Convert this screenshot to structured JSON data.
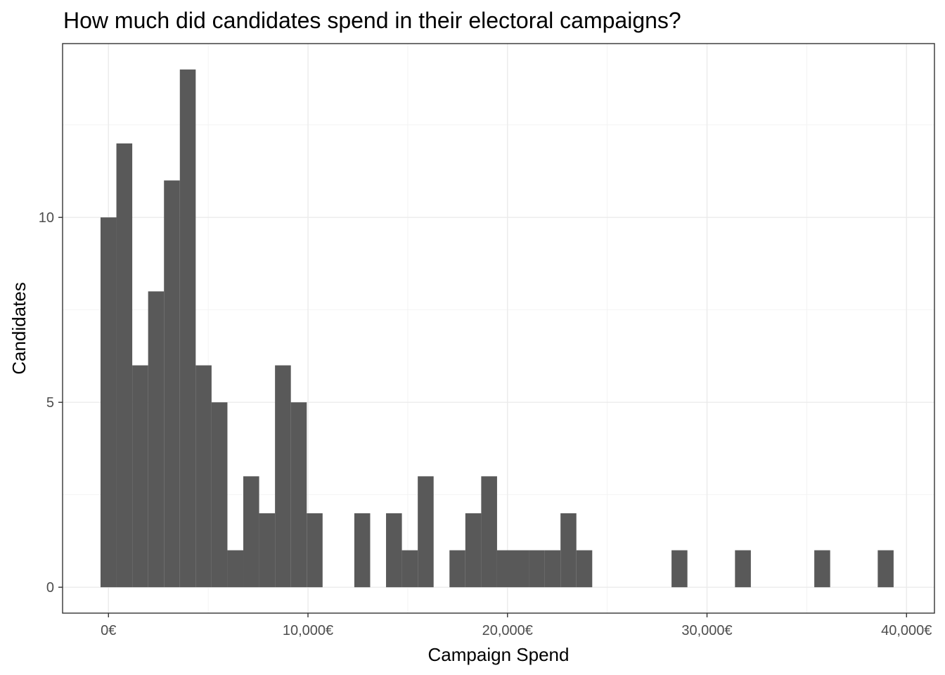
{
  "chart_data": {
    "type": "bar",
    "title": "How much did candidates spend in their electoral campaigns?",
    "xlabel": "Campaign Spend",
    "ylabel": "Candidates",
    "x_ticks": [
      {
        "value": 0,
        "label": "0€"
      },
      {
        "value": 10000,
        "label": "10,000€"
      },
      {
        "value": 20000,
        "label": "20,000€"
      },
      {
        "value": 30000,
        "label": "30,000€"
      },
      {
        "value": 40000,
        "label": "40,000€"
      }
    ],
    "y_ticks": [
      {
        "value": 0,
        "label": "0"
      },
      {
        "value": 5,
        "label": "5"
      },
      {
        "value": 10,
        "label": "10"
      }
    ],
    "xlim": [
      -2300,
      41400
    ],
    "ylim": [
      -0.7,
      14.7
    ],
    "bin_width": 795,
    "bins": [
      {
        "x": 0,
        "count": 10
      },
      {
        "x": 795,
        "count": 12
      },
      {
        "x": 1590,
        "count": 6
      },
      {
        "x": 2385,
        "count": 8
      },
      {
        "x": 3180,
        "count": 11
      },
      {
        "x": 3975,
        "count": 14
      },
      {
        "x": 4770,
        "count": 6
      },
      {
        "x": 5565,
        "count": 5
      },
      {
        "x": 6360,
        "count": 1
      },
      {
        "x": 7155,
        "count": 3
      },
      {
        "x": 7950,
        "count": 2
      },
      {
        "x": 8745,
        "count": 6
      },
      {
        "x": 9540,
        "count": 5
      },
      {
        "x": 10335,
        "count": 2
      },
      {
        "x": 11130,
        "count": 0
      },
      {
        "x": 11925,
        "count": 0
      },
      {
        "x": 12720,
        "count": 2
      },
      {
        "x": 13515,
        "count": 0
      },
      {
        "x": 14310,
        "count": 2
      },
      {
        "x": 15105,
        "count": 1
      },
      {
        "x": 15900,
        "count": 3
      },
      {
        "x": 16695,
        "count": 0
      },
      {
        "x": 17490,
        "count": 1
      },
      {
        "x": 18285,
        "count": 2
      },
      {
        "x": 19080,
        "count": 3
      },
      {
        "x": 19875,
        "count": 1
      },
      {
        "x": 20670,
        "count": 1
      },
      {
        "x": 21465,
        "count": 1
      },
      {
        "x": 22260,
        "count": 1
      },
      {
        "x": 23055,
        "count": 2
      },
      {
        "x": 23850,
        "count": 1
      },
      {
        "x": 28620,
        "count": 1
      },
      {
        "x": 31800,
        "count": 1
      },
      {
        "x": 35775,
        "count": 1
      },
      {
        "x": 38955,
        "count": 1
      }
    ],
    "grid": true,
    "legend": "none",
    "bar_color": "#595959",
    "grid_color": "#ebebeb",
    "panel_border_color": "#333333"
  }
}
